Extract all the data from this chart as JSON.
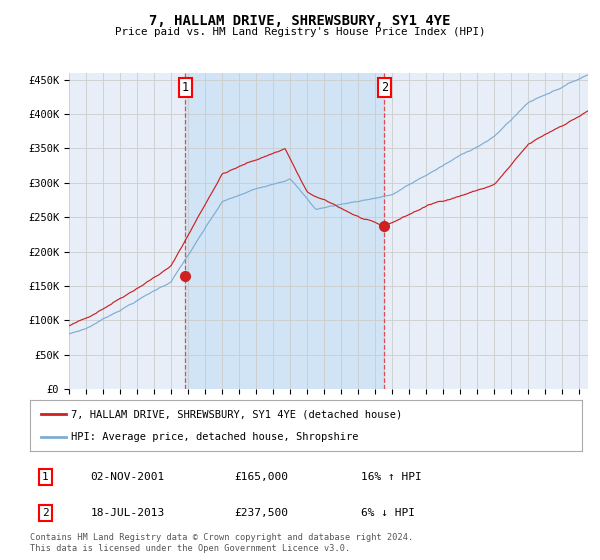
{
  "title": "7, HALLAM DRIVE, SHREWSBURY, SY1 4YE",
  "subtitle": "Price paid vs. HM Land Registry's House Price Index (HPI)",
  "background_color": "#ffffff",
  "plot_bg_color": "#e8eef8",
  "grid_color": "#cccccc",
  "ylim": [
    0,
    460000
  ],
  "yticks": [
    0,
    50000,
    100000,
    150000,
    200000,
    250000,
    300000,
    350000,
    400000,
    450000
  ],
  "ytick_labels": [
    "£0",
    "£50K",
    "£100K",
    "£150K",
    "£200K",
    "£250K",
    "£300K",
    "£350K",
    "£400K",
    "£450K"
  ],
  "hpi_color": "#7eadd4",
  "price_color": "#cc2222",
  "purchase1_price": 165000,
  "purchase1_label": "1",
  "purchase1_x": 2001.84,
  "purchase2_price": 237500,
  "purchase2_label": "2",
  "purchase2_x": 2013.54,
  "legend_label_price": "7, HALLAM DRIVE, SHREWSBURY, SY1 4YE (detached house)",
  "legend_label_hpi": "HPI: Average price, detached house, Shropshire",
  "table_row1": [
    "1",
    "02-NOV-2001",
    "£165,000",
    "16% ↑ HPI"
  ],
  "table_row2": [
    "2",
    "18-JUL-2013",
    "£237,500",
    "6% ↓ HPI"
  ],
  "footer": "Contains HM Land Registry data © Crown copyright and database right 2024.\nThis data is licensed under the Open Government Licence v3.0.",
  "xmin": 1995.0,
  "xmax": 2025.5,
  "shade_x1": 2001.84,
  "shade_x2": 2013.54
}
